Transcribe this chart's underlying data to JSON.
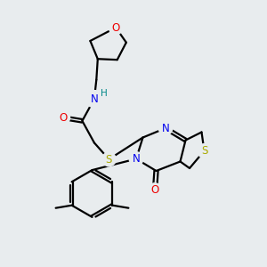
{
  "bg_color": "#e8ecee",
  "atom_colors": {
    "C": "#000000",
    "N": "#0000ee",
    "O": "#ee0000",
    "S": "#aaaa00",
    "H": "#008888"
  },
  "bond_color": "#000000",
  "bond_width": 1.6
}
